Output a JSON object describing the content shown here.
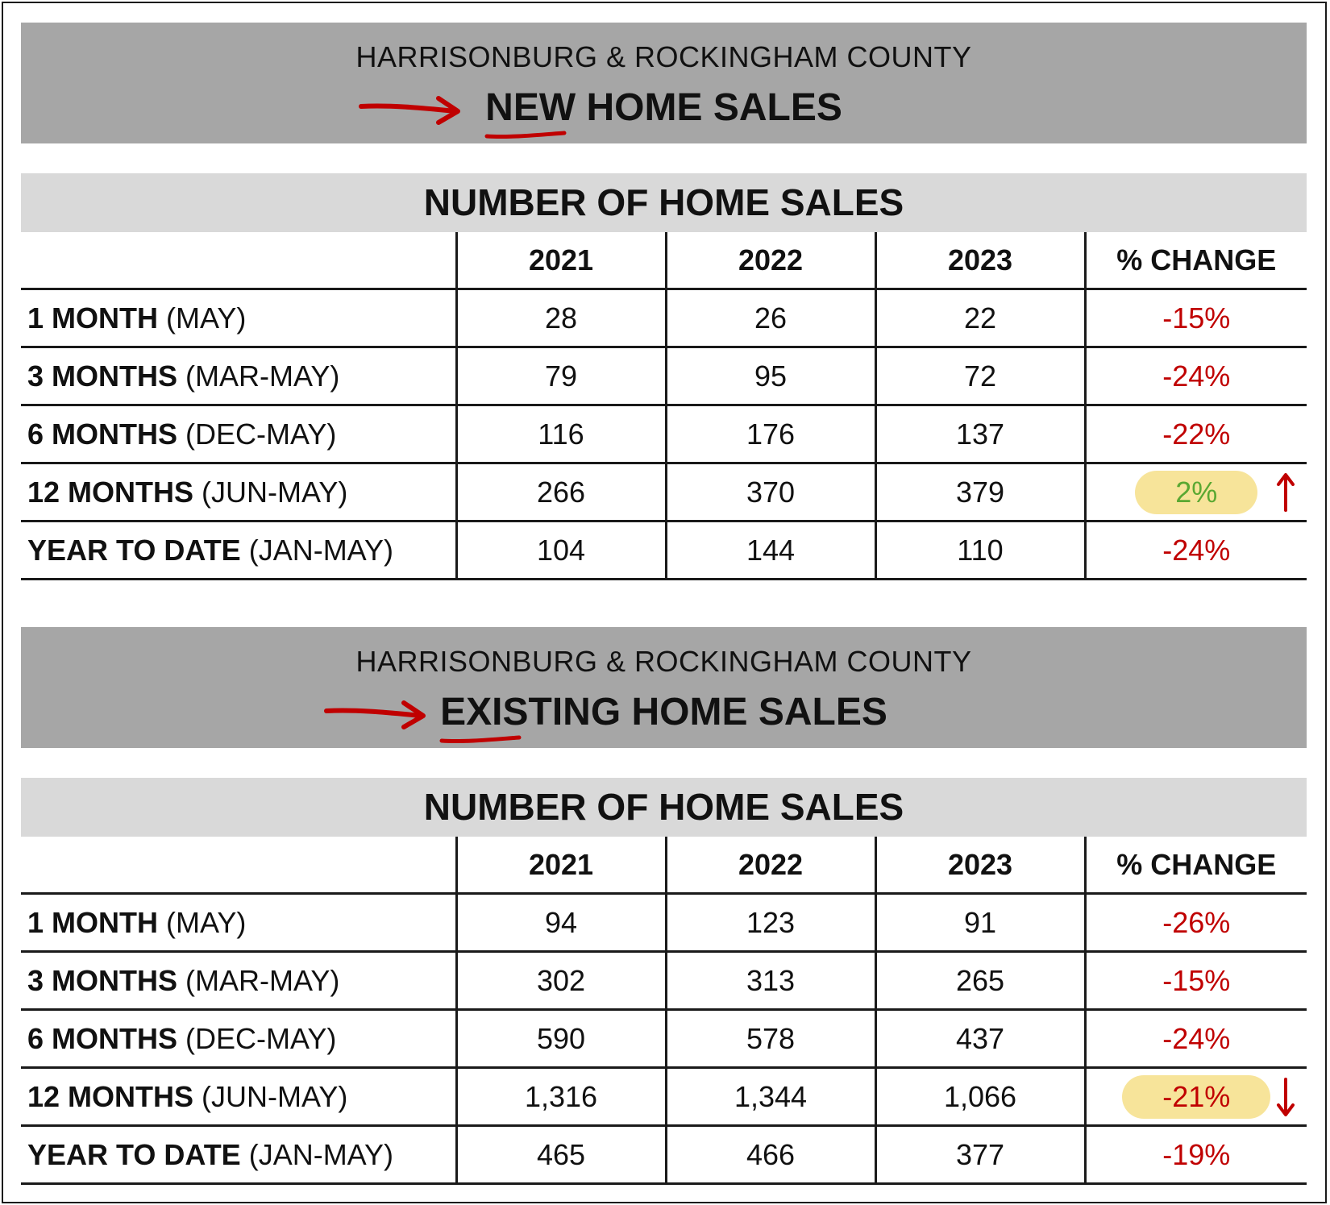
{
  "colors": {
    "banner_bg": "#a6a6a6",
    "subhead_bg": "#d9d9d9",
    "negative": "#c00000",
    "positive": "#5aa832",
    "highlight": "#f7e49a",
    "annotation_red": "#c00000"
  },
  "new_sales": {
    "banner_sub": "HARRISONBURG & ROCKINGHAM COUNTY",
    "title_highlight": "NEW",
    "title_rest": " HOME SALES",
    "subhead": "NUMBER OF HOME SALES",
    "headers": [
      "",
      "2021",
      "2022",
      "2023",
      "% CHANGE"
    ],
    "rows": [
      {
        "bold": "1 MONTH",
        "paren": " (MAY)",
        "v2021": "28",
        "v2022": "26",
        "v2023": "22",
        "pct": "-15%"
      },
      {
        "bold": "3 MONTHS",
        "paren": " (MAR-MAY)",
        "v2021": "79",
        "v2022": "95",
        "v2023": "72",
        "pct": "-24%"
      },
      {
        "bold": "6 MONTHS",
        "paren": " (DEC-MAY)",
        "v2021": "116",
        "v2022": "176",
        "v2023": "137",
        "pct": "-22%"
      },
      {
        "bold": "12 MONTHS",
        "paren": " (JUN-MAY)",
        "v2021": "266",
        "v2022": "370",
        "v2023": "379",
        "pct": "2%",
        "highlight": true,
        "trend": "up-arrow-icon"
      },
      {
        "bold": "YEAR TO DATE",
        "paren": " (JAN-MAY)",
        "v2021": "104",
        "v2022": "144",
        "v2023": "110",
        "pct": "-24%"
      }
    ]
  },
  "existing_sales": {
    "banner_sub": "HARRISONBURG & ROCKINGHAM COUNTY",
    "title_highlight": "EXISTING",
    "title_rest": " HOME SALES",
    "subhead": "NUMBER OF HOME SALES",
    "headers": [
      "",
      "2021",
      "2022",
      "2023",
      "% CHANGE"
    ],
    "rows": [
      {
        "bold": "1 MONTH",
        "paren": " (MAY)",
        "v2021": "94",
        "v2022": "123",
        "v2023": "91",
        "pct": "-26%"
      },
      {
        "bold": "3 MONTHS",
        "paren": " (MAR-MAY)",
        "v2021": "302",
        "v2022": "313",
        "v2023": "265",
        "pct": "-15%"
      },
      {
        "bold": "6 MONTHS",
        "paren": " (DEC-MAY)",
        "v2021": "590",
        "v2022": "578",
        "v2023": "437",
        "pct": "-24%"
      },
      {
        "bold": "12 MONTHS",
        "paren": " (JUN-MAY)",
        "v2021": "1,316",
        "v2022": "1,344",
        "v2023": "1,066",
        "pct": "-21%",
        "highlight": true,
        "trend": "down-arrow-icon"
      },
      {
        "bold": "YEAR TO DATE",
        "paren": " (JAN-MAY)",
        "v2021": "465",
        "v2022": "466",
        "v2023": "377",
        "pct": "-19%"
      }
    ]
  }
}
